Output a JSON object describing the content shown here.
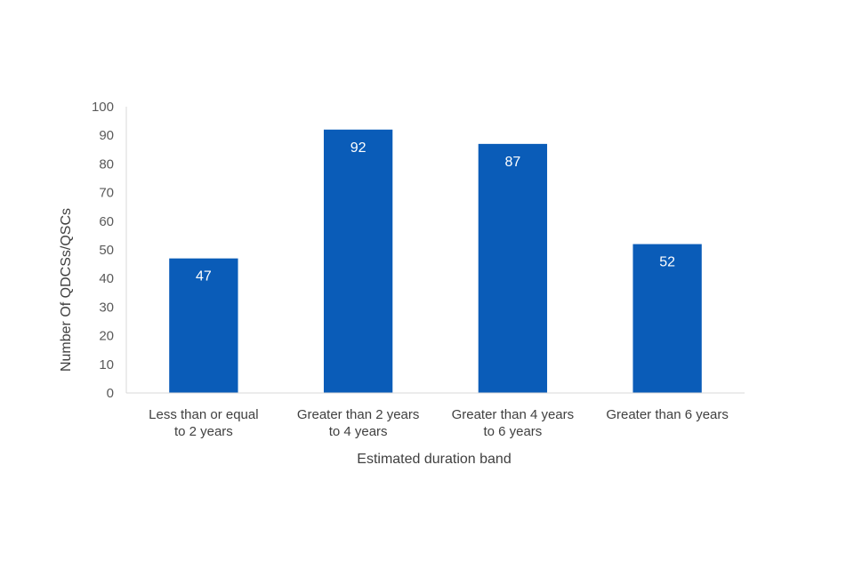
{
  "chart_data": {
    "type": "bar",
    "title": "",
    "categories": [
      [
        "Less than or equal",
        "to 2 years"
      ],
      [
        "Greater than 2 years",
        "to 4 years"
      ],
      [
        "Greater than 4 years",
        "to 6 years"
      ],
      [
        "Greater than 6 years"
      ]
    ],
    "values": [
      47,
      92,
      87,
      52
    ],
    "data_labels": [
      "47",
      "92",
      "87",
      "52"
    ],
    "xlabel": "Estimated duration band",
    "ylabel": "Number Of QDCSs/QSCs",
    "ylim": [
      0,
      100
    ],
    "yticks": [
      0,
      10,
      20,
      30,
      40,
      50,
      60,
      70,
      80,
      90,
      100
    ],
    "grid": false,
    "legend": "none",
    "colors": {
      "bar": "#0a5cb8",
      "axis": "#d9d9d9",
      "data_label": "#ffffff"
    }
  }
}
